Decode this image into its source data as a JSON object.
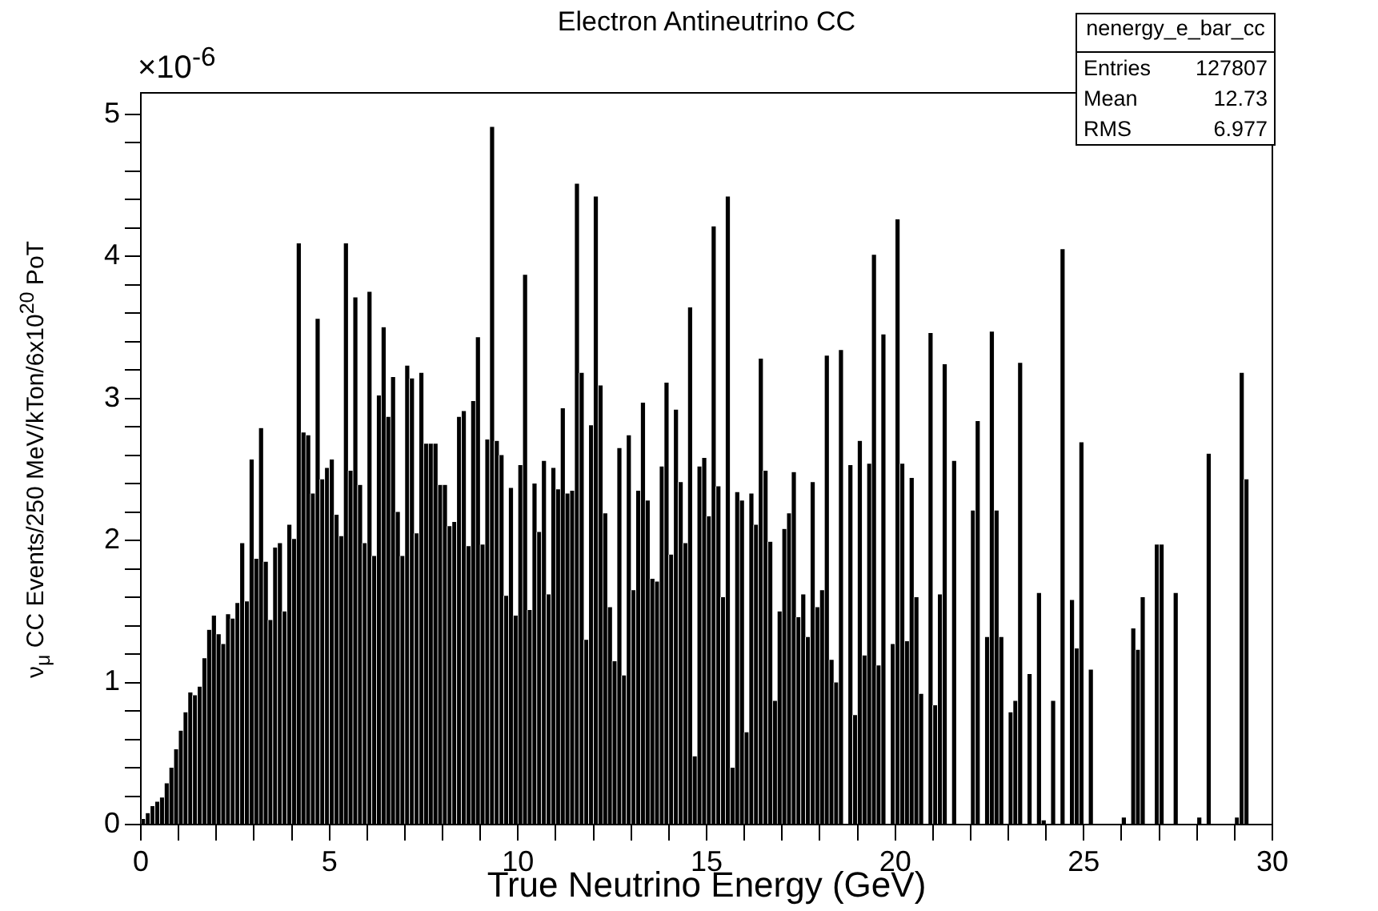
{
  "chart_data": {
    "type": "histogram",
    "title": "Electron Antineutrino CC",
    "xlabel": "True Neutrino Energy (GeV)",
    "ylabel": "ν$_{μ}$ CC Events/250 MeV/kTon/6x10$^{20}$ PoT",
    "annotations": [
      "×10$^{-6}$",
      "nenergy_e_bar_cc",
      "Entries 127807",
      "Mean 12.73",
      "RMS 6.977"
    ],
    "color": "#000000",
    "bins": [
      0,
      0.125,
      0.25,
      0.375,
      0.5,
      0.625,
      0.75,
      0.875,
      1,
      1.125,
      1.25,
      1.375,
      1.5,
      1.625,
      1.75,
      1.875,
      2,
      2.125,
      2.25,
      2.375,
      2.5,
      2.625,
      2.75,
      2.875,
      3,
      3.125,
      3.25,
      3.375,
      3.5,
      3.625,
      3.75,
      3.875,
      4,
      4.125,
      4.25,
      4.375,
      4.5,
      4.625,
      4.75,
      4.875,
      5,
      5.125,
      5.25,
      5.375,
      5.5,
      5.625,
      5.75,
      5.875,
      6,
      6.125,
      6.25,
      6.375,
      6.5,
      6.625,
      6.75,
      6.875,
      7,
      7.125,
      7.25,
      7.375,
      7.5,
      7.625,
      7.75,
      7.875,
      8,
      8.125,
      8.25,
      8.375,
      8.5,
      8.625,
      8.75,
      8.875,
      9,
      9.125,
      9.25,
      9.375,
      9.5,
      9.625,
      9.75,
      9.875,
      10,
      10.125,
      10.25,
      10.375,
      10.5,
      10.625,
      10.75,
      10.875,
      11,
      11.125,
      11.25,
      11.375,
      11.5,
      11.625,
      11.75,
      11.875,
      12,
      12.125,
      12.25,
      12.375,
      12.5,
      12.625,
      12.75,
      12.875,
      13,
      13.125,
      13.25,
      13.375,
      13.5,
      13.625,
      13.75,
      13.875,
      14,
      14.125,
      14.25,
      14.375,
      14.5,
      14.625,
      14.75,
      14.875,
      15,
      15.125,
      15.25,
      15.375,
      15.5,
      15.625,
      15.75,
      15.875,
      16,
      16.125,
      16.25,
      16.375,
      16.5,
      16.625,
      16.75,
      16.875,
      17,
      17.125,
      17.25,
      17.375,
      17.5,
      17.625,
      17.75,
      17.875,
      18,
      18.125,
      18.25,
      18.375,
      18.5,
      18.625,
      18.75,
      18.875,
      19,
      19.125,
      19.25,
      19.375,
      19.5,
      19.625,
      19.75,
      19.875,
      20,
      20.125,
      20.25,
      20.375,
      20.5,
      20.625,
      20.75,
      20.875,
      21,
      21.125,
      21.25,
      21.375,
      21.5,
      21.625,
      21.75,
      21.875,
      22,
      22.125,
      22.25,
      22.375,
      22.5,
      22.625,
      22.75,
      22.875,
      23,
      23.125,
      23.25,
      23.375,
      23.5,
      23.625,
      23.75,
      23.875,
      24,
      24.125,
      24.25,
      24.375,
      24.5,
      24.625,
      24.75,
      24.875,
      25,
      25.125,
      25.25,
      25.375,
      25.5,
      25.625,
      25.75,
      25.875,
      26,
      26.125,
      26.25,
      26.375,
      26.5,
      26.625,
      26.75,
      26.875,
      27,
      27.125,
      27.25,
      27.375,
      27.5,
      27.625,
      27.75,
      27.875,
      28,
      28.125,
      28.25,
      28.375,
      28.5,
      28.625,
      28.75,
      28.875,
      29,
      29.125,
      29.25,
      29.375,
      29.5,
      29.625,
      29.75,
      29.875,
      30
    ],
    "values": [
      0.04,
      0.08,
      0.13,
      0.16,
      0.19,
      0.29,
      0.4,
      0.53,
      0.66,
      0.79,
      0.93,
      0.91,
      0.97,
      1.17,
      1.37,
      1.47,
      1.34,
      1.27,
      1.48,
      1.45,
      1.56,
      1.98,
      1.57,
      2.57,
      1.87,
      2.79,
      1.85,
      1.44,
      1.95,
      1.98,
      1.5,
      2.11,
      2.01,
      4.09,
      2.76,
      2.74,
      2.33,
      3.56,
      2.43,
      2.51,
      2.57,
      2.18,
      2.03,
      4.09,
      2.49,
      3.71,
      2.39,
      1.98,
      3.75,
      1.89,
      3.02,
      3.5,
      2.87,
      3.15,
      2.2,
      1.89,
      3.23,
      3.14,
      2.05,
      3.18,
      2.68,
      2.68,
      2.68,
      2.39,
      2.39,
      2.1,
      2.13,
      2.87,
      2.91,
      1.96,
      2.98,
      3.43,
      1.97,
      2.71,
      4.91,
      2.7,
      2.6,
      1.61,
      2.37,
      1.47,
      2.53,
      3.87,
      1.51,
      2.4,
      2.06,
      2.56,
      1.62,
      2.51,
      2.36,
      2.93,
      2.33,
      2.35,
      4.51,
      3.18,
      1.3,
      2.81,
      4.42,
      3.09,
      2.19,
      1.53,
      1.15,
      2.65,
      1.05,
      2.74,
      1.65,
      2.35,
      2.97,
      2.28,
      1.73,
      1.71,
      2.52,
      3.11,
      1.9,
      2.92,
      2.41,
      1.98,
      3.64,
      0.48,
      2.52,
      2.58,
      2.17,
      4.21,
      2.38,
      1.6,
      4.42,
      0.4,
      2.34,
      2.28,
      0.65,
      2.33,
      2.11,
      3.28,
      2.49,
      1.99,
      0.87,
      1.5,
      2.08,
      2.19,
      2.48,
      1.46,
      1.62,
      1.32,
      2.41,
      1.53,
      1.65,
      3.3,
      1.16,
      1.0,
      3.34,
      0,
      2.53,
      0.77,
      2.7,
      1.19,
      2.54,
      4.01,
      1.12,
      3.45,
      0,
      1.27,
      4.26,
      2.54,
      1.29,
      2.44,
      1.6,
      0.92,
      0,
      3.46,
      0.84,
      1.62,
      3.24,
      0,
      2.56,
      0,
      0,
      0,
      2.21,
      2.84,
      0,
      1.32,
      3.47,
      2.21,
      1.32,
      0,
      0.79,
      0.87,
      3.25,
      0,
      1.06,
      0,
      1.63,
      0.03,
      0,
      0.87,
      0,
      4.05,
      0,
      1.58,
      1.24,
      2.69,
      0,
      1.09,
      0,
      0,
      0,
      0,
      0,
      0,
      0.05,
      0,
      1.38,
      1.23,
      1.6,
      0,
      0,
      1.97,
      1.97,
      0,
      0,
      1.63,
      0,
      0,
      0,
      0,
      0.05,
      0,
      2.61,
      0,
      0,
      0,
      0,
      0,
      0.05,
      3.18,
      2.43,
      0,
      0,
      0,
      0,
      0
    ],
    "xlim": [
      0,
      30
    ],
    "xticks": [
      0,
      {
        "value": 1,
        "label": null
      },
      {
        "value": 2,
        "label": null
      },
      {
        "value": 3,
        "label": null
      },
      {
        "value": 4,
        "label": null
      },
      5,
      {
        "value": 6,
        "label": null
      },
      {
        "value": 7,
        "label": null
      },
      {
        "value": 8,
        "label": null
      },
      {
        "value": 9,
        "label": null
      },
      10,
      {
        "value": 11,
        "label": null
      },
      {
        "value": 12,
        "label": null
      },
      {
        "value": 13,
        "label": null
      },
      {
        "value": 14,
        "label": null
      },
      15,
      {
        "value": 16,
        "label": null
      },
      {
        "value": 17,
        "label": null
      },
      {
        "value": 18,
        "label": null
      },
      {
        "value": 19,
        "label": null
      },
      20,
      {
        "value": 21,
        "label": null
      },
      {
        "value": 22,
        "label": null
      },
      {
        "value": 23,
        "label": null
      },
      {
        "value": 24,
        "label": null
      },
      25,
      {
        "value": 26,
        "label": null
      },
      {
        "value": 27,
        "label": null
      },
      {
        "value": 28,
        "label": null
      },
      {
        "value": 29,
        "label": null
      },
      30
    ],
    "ylim": [
      0,
      5.15
    ],
    "yticks": [
      0,
      {
        "value": 0.2,
        "label": null
      },
      {
        "value": 0.4,
        "label": null
      },
      {
        "value": 0.6,
        "label": null
      },
      {
        "value": 0.8,
        "label": null
      },
      1,
      {
        "value": 1.2,
        "label": null
      },
      {
        "value": 1.4,
        "label": null
      },
      {
        "value": 1.6,
        "label": null
      },
      {
        "value": 1.8,
        "label": null
      },
      2,
      {
        "value": 2.2,
        "label": null
      },
      {
        "value": 2.4,
        "label": null
      },
      {
        "value": 2.6,
        "label": null
      },
      {
        "value": 2.8,
        "label": null
      },
      3,
      {
        "value": 3.2,
        "label": null
      },
      {
        "value": 3.4,
        "label": null
      },
      {
        "value": 3.6,
        "label": null
      },
      {
        "value": 3.8,
        "label": null
      },
      4,
      {
        "value": 4.2,
        "label": null
      },
      {
        "value": 4.4,
        "label": null
      },
      {
        "value": 4.6,
        "label": null
      },
      {
        "value": 4.8,
        "label": null
      },
      5
    ]
  }
}
